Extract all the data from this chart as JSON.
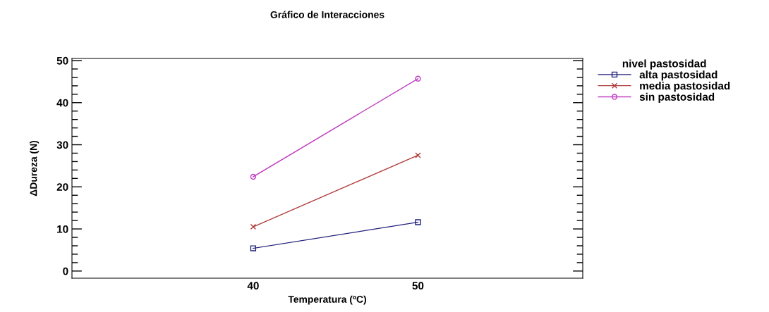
{
  "chart_data": {
    "type": "line",
    "title": "Gráfico de Interacciones",
    "xlabel": "Temperatura (ºC)",
    "ylabel": "ΔDureza (N)",
    "legend_title": "nivel pastosidad",
    "legend": "top right",
    "x": [
      40,
      50
    ],
    "series": [
      {
        "name": "alta pastosidad",
        "color": "#1f1f7a",
        "marker": "square",
        "values": [
          5.4,
          11.6
        ]
      },
      {
        "name": "media pastosidad",
        "color": "#b03a3a",
        "marker": "cross",
        "values": [
          10.5,
          27.5
        ]
      },
      {
        "name": "sin pastosidad",
        "color": "#c040c0",
        "marker": "circle",
        "values": [
          22.4,
          45.7
        ]
      }
    ],
    "xlim": [
      29,
      60
    ],
    "xticks": [
      40,
      50
    ],
    "ylim": [
      -1.7,
      50.5
    ],
    "yticks": [
      0,
      10,
      20,
      30,
      40,
      50
    ],
    "grid": false,
    "line_style": "solid"
  }
}
